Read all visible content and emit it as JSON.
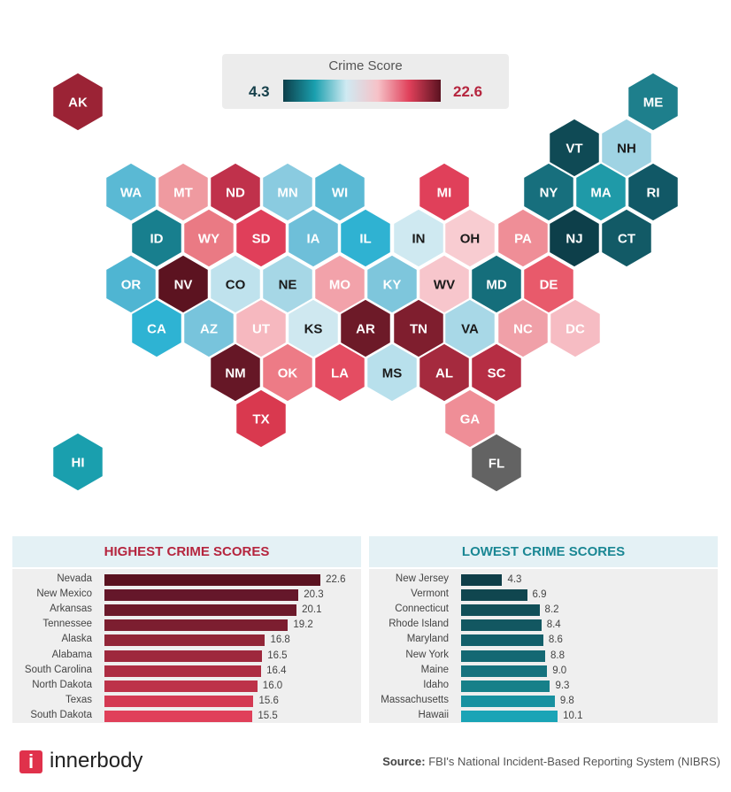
{
  "legend": {
    "title": "Crime Score",
    "min": "4.3",
    "max": "22.6",
    "gradient": [
      "#0d3f4a",
      "#1a9fae",
      "#cfeaf2",
      "#f6c2c8",
      "#e0405a",
      "#5a1220"
    ]
  },
  "chart_data": [
    {
      "type": "hex-map",
      "title": "Crime Score",
      "states": [
        {
          "abbr": "AK",
          "color": "#9b2335"
        },
        {
          "abbr": "HI",
          "color": "#1a9fae"
        },
        {
          "abbr": "ME",
          "color": "#1e7f8c"
        },
        {
          "abbr": "VT",
          "color": "#0f4a55"
        },
        {
          "abbr": "NH",
          "color": "#9fd3e3"
        },
        {
          "abbr": "WA",
          "color": "#5ab9d4"
        },
        {
          "abbr": "MT",
          "color": "#ef9aa0"
        },
        {
          "abbr": "ND",
          "color": "#c0314b"
        },
        {
          "abbr": "MN",
          "color": "#8acbe0"
        },
        {
          "abbr": "WI",
          "color": "#5ab9d4"
        },
        {
          "abbr": "MI",
          "color": "#e0405a"
        },
        {
          "abbr": "NY",
          "color": "#176f7d"
        },
        {
          "abbr": "MA",
          "color": "#1f9aa8"
        },
        {
          "abbr": "RI",
          "color": "#115866"
        },
        {
          "abbr": "ID",
          "color": "#187f8e"
        },
        {
          "abbr": "WY",
          "color": "#ea7a84"
        },
        {
          "abbr": "SD",
          "color": "#e03f5a"
        },
        {
          "abbr": "IA",
          "color": "#6ebfd9"
        },
        {
          "abbr": "IL",
          "color": "#2fb2d2"
        },
        {
          "abbr": "IN",
          "color": "#cfe9f1"
        },
        {
          "abbr": "OH",
          "color": "#f8ccd1"
        },
        {
          "abbr": "PA",
          "color": "#ef8e97"
        },
        {
          "abbr": "NJ",
          "color": "#0d3f4a"
        },
        {
          "abbr": "CT",
          "color": "#125a66"
        },
        {
          "abbr": "OR",
          "color": "#4fb5d2"
        },
        {
          "abbr": "NV",
          "color": "#5c1320"
        },
        {
          "abbr": "CO",
          "color": "#bfe2ed"
        },
        {
          "abbr": "NE",
          "color": "#a6d7e6"
        },
        {
          "abbr": "MO",
          "color": "#f2a2aa"
        },
        {
          "abbr": "KY",
          "color": "#7ec6dc"
        },
        {
          "abbr": "WV",
          "color": "#f7c6cc"
        },
        {
          "abbr": "MD",
          "color": "#156e7b"
        },
        {
          "abbr": "DE",
          "color": "#e85a6b"
        },
        {
          "abbr": "CA",
          "color": "#2eb3d3"
        },
        {
          "abbr": "AZ",
          "color": "#78c4dc"
        },
        {
          "abbr": "UT",
          "color": "#f6b8bf"
        },
        {
          "abbr": "KS",
          "color": "#cfe8f0"
        },
        {
          "abbr": "AR",
          "color": "#6d1a28"
        },
        {
          "abbr": "TN",
          "color": "#7f1e2e"
        },
        {
          "abbr": "VA",
          "color": "#a8d8e7"
        },
        {
          "abbr": "NC",
          "color": "#f0a0a8"
        },
        {
          "abbr": "DC",
          "color": "#f6bcc3"
        },
        {
          "abbr": "NM",
          "color": "#661726"
        },
        {
          "abbr": "OK",
          "color": "#ed7b86"
        },
        {
          "abbr": "LA",
          "color": "#e44d62"
        },
        {
          "abbr": "MS",
          "color": "#b8e0ec"
        },
        {
          "abbr": "AL",
          "color": "#a52a3e"
        },
        {
          "abbr": "SC",
          "color": "#b62e44"
        },
        {
          "abbr": "TX",
          "color": "#d9394f"
        },
        {
          "abbr": "GA",
          "color": "#ef8e97"
        },
        {
          "abbr": "FL",
          "color": "#636363"
        }
      ]
    },
    {
      "type": "bar",
      "title": "HIGHEST CRIME SCORES",
      "title_color": "#b5253e",
      "categories": [
        "Nevada",
        "New Mexico",
        "Arkansas",
        "Tennessee",
        "Alaska",
        "Alabama",
        "South Carolina",
        "North Dakota",
        "Texas",
        "South Dakota"
      ],
      "values": [
        22.6,
        20.3,
        20.1,
        19.2,
        16.8,
        16.5,
        16.4,
        16.0,
        15.6,
        15.5
      ],
      "labels": [
        "22.6",
        "20.3",
        "20.1",
        "19.2",
        "16.8",
        "16.5",
        "16.4",
        "16.0",
        "15.6",
        "15.5"
      ],
      "colors": [
        "#5a1220",
        "#65172a",
        "#6c1a2b",
        "#7c1e30",
        "#922638",
        "#9e283d",
        "#ad2d43",
        "#bd3249",
        "#d43a53",
        "#e0405a"
      ]
    },
    {
      "type": "bar",
      "title": "LOWEST CRIME SCORES",
      "title_color": "#1a8794",
      "categories": [
        "New Jersey",
        "Vermont",
        "Connecticut",
        "Rhode Island",
        "Maryland",
        "New York",
        "Maine",
        "Idaho",
        "Massachusetts",
        "Hawaii"
      ],
      "values": [
        4.3,
        6.9,
        8.2,
        8.4,
        8.6,
        8.8,
        9.0,
        9.3,
        9.8,
        10.1
      ],
      "labels": [
        "4.3",
        "6.9",
        "8.2",
        "8.4",
        "8.6",
        "8.8",
        "9.0",
        "9.3",
        "9.8",
        "10.1"
      ],
      "colors": [
        "#0f3e48",
        "#10464f",
        "#114f58",
        "#125761",
        "#135f6a",
        "#146873",
        "#16727e",
        "#178089",
        "#1991a0",
        "#1aa4b6"
      ]
    }
  ],
  "footer": {
    "brand": "innerbody",
    "logo_letter": "i",
    "source_label": "Source:",
    "source_text": " FBI's National Incident-Based Reporting System (NIBRS)"
  }
}
